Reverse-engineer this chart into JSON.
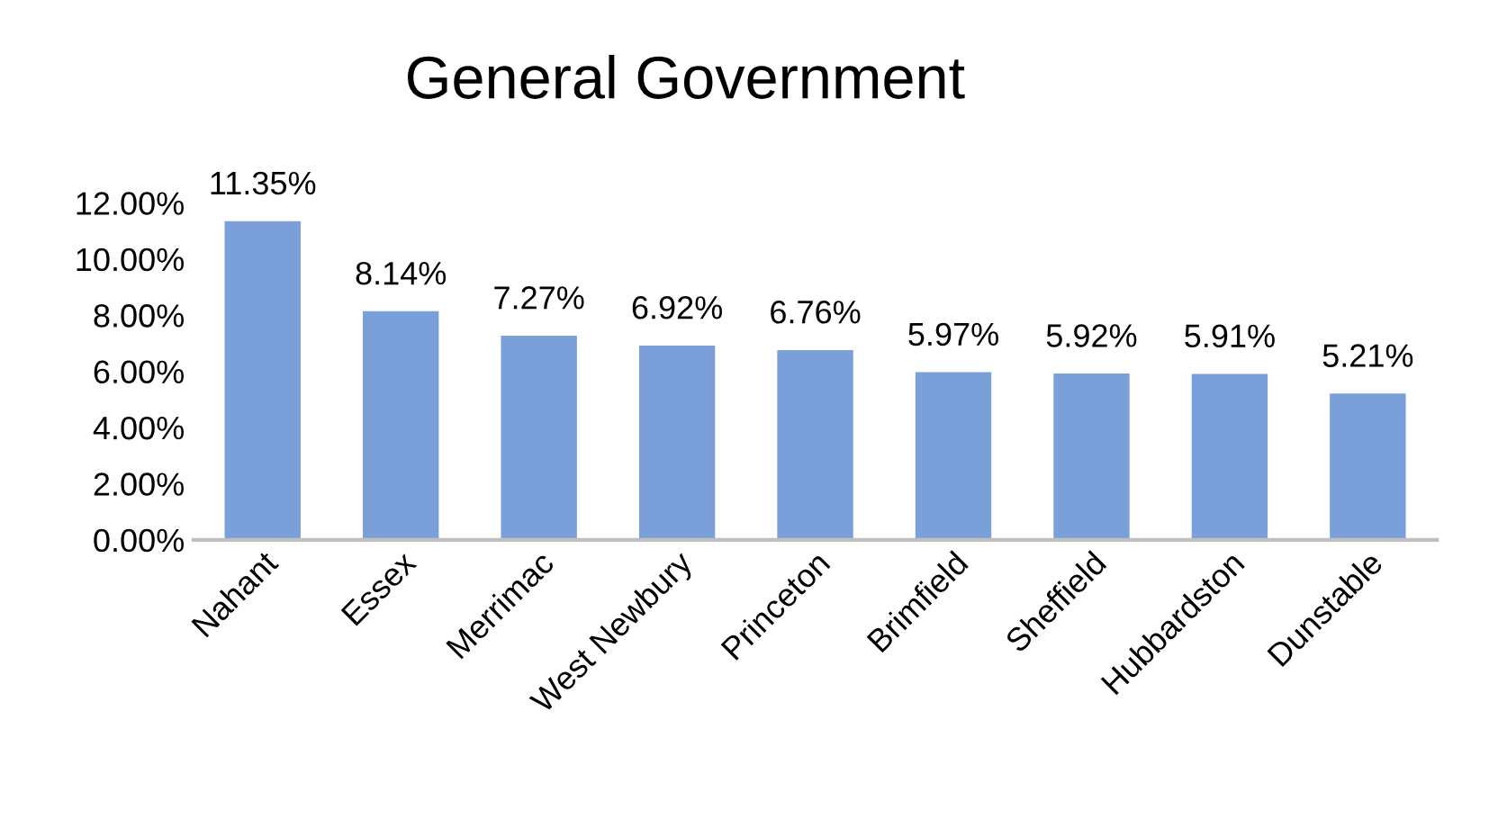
{
  "chart_data": {
    "type": "bar",
    "title": "General Government",
    "categories": [
      "Nahant",
      "Essex",
      "Merrimac",
      "West Newbury",
      "Princeton",
      "Brimfield",
      "Sheffield",
      "Hubbardston",
      "Dunstable"
    ],
    "values": [
      11.35,
      8.14,
      7.27,
      6.92,
      6.76,
      5.97,
      5.92,
      5.91,
      5.21
    ],
    "value_labels": [
      "11.35%",
      "8.14%",
      "7.27%",
      "6.92%",
      "6.76%",
      "5.97%",
      "5.92%",
      "5.91%",
      "5.21%"
    ],
    "color": "#7b9fd9",
    "ylim": [
      0,
      12
    ],
    "yticks": [
      {
        "value": 0,
        "label": "0.00%"
      },
      {
        "value": 2,
        "label": "2.00%"
      },
      {
        "value": 4,
        "label": "4.00%"
      },
      {
        "value": 6,
        "label": "6.00%"
      },
      {
        "value": 8,
        "label": "8.00%"
      },
      {
        "value": 10,
        "label": "10.00%"
      },
      {
        "value": 12,
        "label": "12.00%"
      }
    ],
    "grid": false,
    "legend": false
  }
}
